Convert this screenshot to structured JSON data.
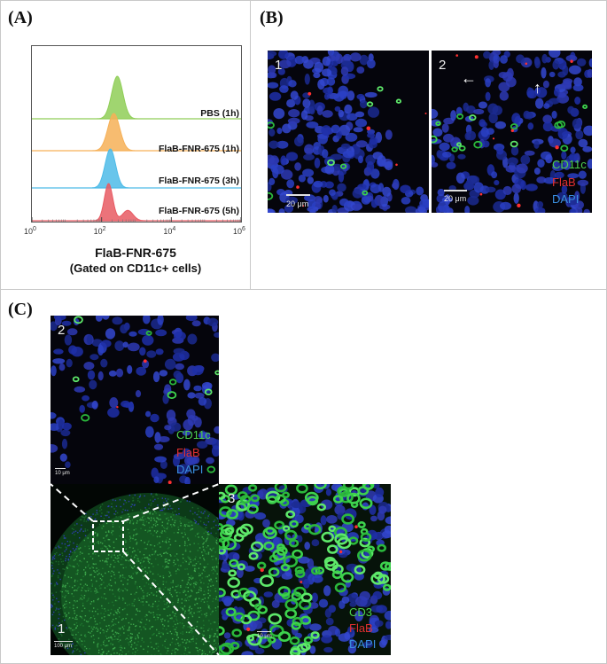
{
  "panels": {
    "a": {
      "letter": "(A)"
    },
    "b": {
      "letter": "(B)"
    },
    "c": {
      "letter": "(C)"
    }
  },
  "chart_data": {
    "type": "area",
    "x_scale": "log",
    "xlim": [
      1,
      1000000
    ],
    "x_ticks": [
      {
        "value": 1,
        "label": "10",
        "exp": "0"
      },
      {
        "value": 100,
        "label": "10",
        "exp": "2"
      },
      {
        "value": 10000,
        "label": "10",
        "exp": "4"
      },
      {
        "value": 1000000,
        "label": "10",
        "exp": "6"
      }
    ],
    "xlabel": "FlaB-FNR-675",
    "xlabel_sub": "(Gated on CD11c+ cells)",
    "grid": false,
    "series": [
      {
        "name": "PBS (1h)",
        "color": "#8fce57",
        "peak_log10": 2.45,
        "width": 0.16,
        "shoulder": null
      },
      {
        "name": "FlaB-FNR-675 (1h)",
        "color": "#f6b057",
        "peak_log10": 2.35,
        "width": 0.17,
        "shoulder": null
      },
      {
        "name": "FlaB-FNR-675 (3h)",
        "color": "#4dbbe8",
        "peak_log10": 2.25,
        "width": 0.15,
        "shoulder": null
      },
      {
        "name": "FlaB-FNR-675 (5h)",
        "color": "#e85a63",
        "peak_log10": 2.2,
        "width": 0.12,
        "shoulder": {
          "log10": 2.75,
          "rel": 0.28,
          "width": 0.15
        }
      }
    ]
  },
  "panel_b": {
    "left": {
      "number": "1",
      "scale": "20 μm"
    },
    "right": {
      "number": "2",
      "scale": "20 μm"
    },
    "legend": [
      {
        "text": "CD11c",
        "color": "#4dd04d"
      },
      {
        "text": "FlaB",
        "color": "#e03030"
      },
      {
        "text": "DAPI",
        "color": "#3a8fe0"
      }
    ]
  },
  "panel_c": {
    "image1": {
      "number": "1",
      "scale": "100 μm"
    },
    "image2": {
      "number": "2",
      "scale": "10 μm"
    },
    "image3": {
      "number": "3",
      "scale": "10 μm"
    },
    "legend2": [
      {
        "text": "CD11c",
        "color": "#4dd04d"
      },
      {
        "text": "FlaB",
        "color": "#e03030"
      },
      {
        "text": "DAPI",
        "color": "#3a8fe0"
      }
    ],
    "legend3": [
      {
        "text": "CD3",
        "color": "#4dd04d"
      },
      {
        "text": "FlaB",
        "color": "#e03030"
      },
      {
        "text": "DAPI",
        "color": "#3a8fe0"
      }
    ]
  }
}
